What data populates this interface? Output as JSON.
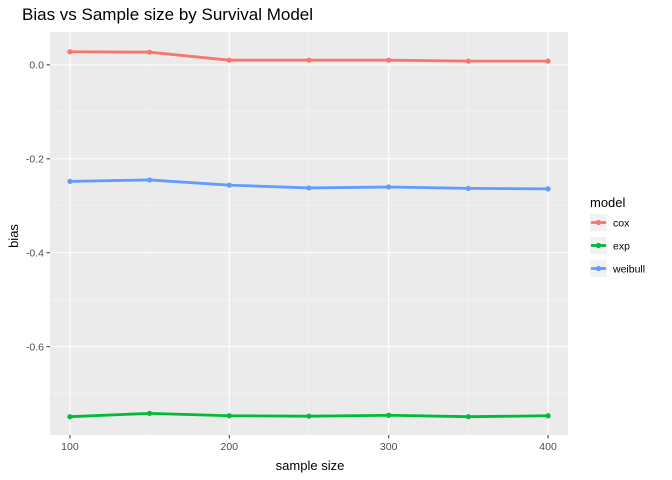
{
  "chart_data": {
    "type": "line",
    "title": "Bias vs Sample size by Survival Model",
    "xlabel": "sample size",
    "ylabel": "bias",
    "x": [
      100,
      150,
      200,
      250,
      300,
      350,
      400
    ],
    "xticks": [
      100,
      200,
      300,
      400
    ],
    "xtick_labels": [
      "100",
      "200",
      "300",
      "400"
    ],
    "yticks": [
      0.0,
      -0.2,
      -0.4,
      -0.6
    ],
    "ytick_labels": [
      "0.0",
      "-0.2",
      "-0.4",
      "-0.6"
    ],
    "xlim": [
      87.5,
      412.5
    ],
    "ylim": [
      -0.788,
      0.07
    ],
    "grid": true,
    "legend": {
      "title": "model",
      "position": "right"
    },
    "series": [
      {
        "name": "cox",
        "color": "#F8766D",
        "values": [
          0.028,
          0.027,
          0.01,
          0.01,
          0.01,
          0.008,
          0.008
        ]
      },
      {
        "name": "exp",
        "color": "#00BA38",
        "values": [
          -0.749,
          -0.742,
          -0.747,
          -0.748,
          -0.746,
          -0.749,
          -0.747
        ]
      },
      {
        "name": "weibull",
        "color": "#619CFF",
        "values": [
          -0.248,
          -0.245,
          -0.256,
          -0.262,
          -0.26,
          -0.263,
          -0.264
        ]
      }
    ]
  }
}
